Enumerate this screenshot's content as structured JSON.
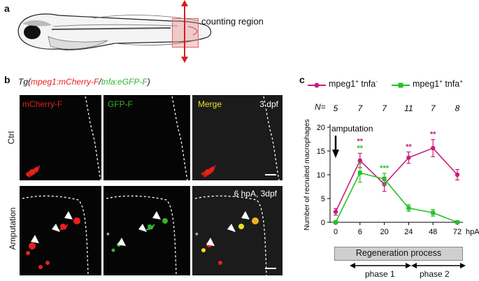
{
  "panel_a": {
    "label": "a",
    "counting_label": "counting region"
  },
  "panel_b": {
    "label": "b",
    "tg_prefix": "Tg(",
    "tg_red": "mpeg1:mCherry-F",
    "tg_slash": "/",
    "tg_green": "tnfa:eGFP-F",
    "tg_suffix": ")",
    "columns": [
      "mCherry-F",
      "GFP-F",
      "Merge"
    ],
    "rows": [
      "Ctrl",
      "Amputation"
    ],
    "ctrl_stage": "3 dpf",
    "amp_stage": "6 hpA, 3dpf",
    "asterisk": "*",
    "colors": {
      "red": "#e8201a",
      "green": "#2fb52f",
      "yellow": "#e8e020"
    }
  },
  "panel_c": {
    "label": "c",
    "n_label": "N=",
    "n_values": [
      "5",
      "7",
      "7",
      "11",
      "7",
      "8"
    ],
    "amputation_label": "amputation",
    "regeneration_label": "Regeneration process",
    "phase1_label": "phase 1",
    "phase2_label": "phase 2",
    "sig_magenta": [
      {
        "x": "6",
        "text": "**"
      },
      {
        "x": "24",
        "text": "**"
      },
      {
        "x": "48",
        "text": "**"
      }
    ],
    "sig_green": [
      {
        "x": "6",
        "text": "**"
      },
      {
        "x": "20",
        "text": "***"
      }
    ]
  },
  "chart_data": {
    "type": "line",
    "x": [
      "0",
      "6",
      "20",
      "24",
      "48",
      "72"
    ],
    "xlabel_unit": "hpA",
    "ylabel": "Number of recruited macrophages",
    "ylim": [
      0,
      20
    ],
    "yticks": [
      "0",
      "5",
      "10",
      "15",
      "20"
    ],
    "grid": false,
    "legend_position": "top",
    "series": [
      {
        "name_base": "mpeg1",
        "name_sup": "+",
        "name_rest": " tnfa",
        "name_sup2": "-",
        "color": "#c81e7d",
        "marker": "circle",
        "values": [
          2.2,
          13.0,
          8.0,
          13.6,
          15.6,
          10.0
        ],
        "errors": [
          0.7,
          1.5,
          1.5,
          1.2,
          1.8,
          1.1
        ]
      },
      {
        "name_base": "mpeg1",
        "name_sup": "+",
        "name_rest": " tnfa",
        "name_sup2": "+",
        "color": "#26c126",
        "marker": "square",
        "values": [
          0.0,
          10.4,
          9.1,
          3.0,
          2.0,
          0.0
        ],
        "errors": [
          0.0,
          2.0,
          1.2,
          0.7,
          0.7,
          0.0
        ]
      }
    ]
  }
}
